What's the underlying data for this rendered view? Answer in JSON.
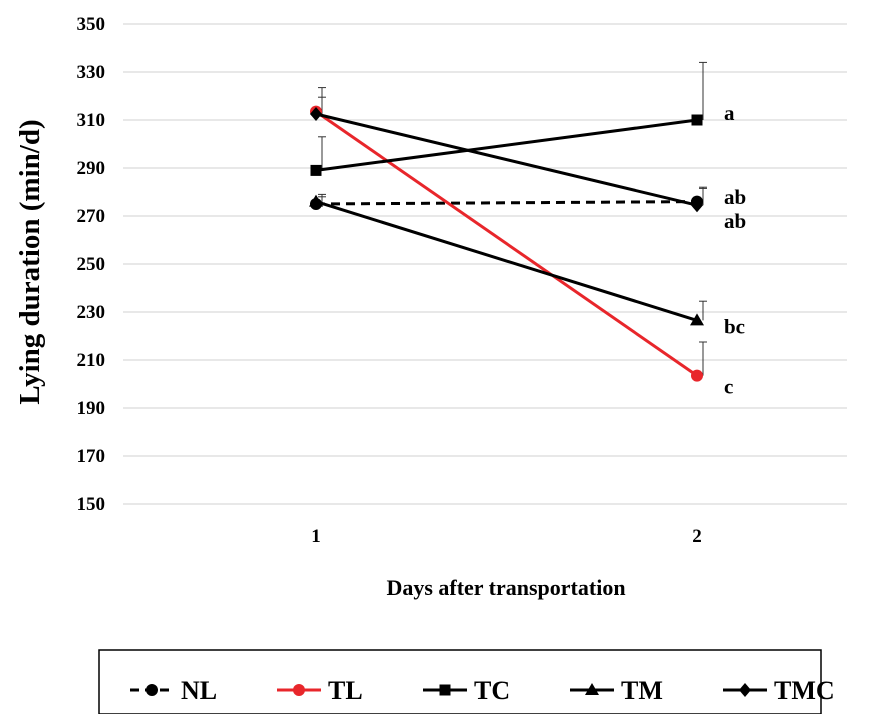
{
  "chart_data": {
    "type": "line",
    "title": "",
    "xlabel": "Days after transportation",
    "ylabel": "Lying duration (min/d)",
    "categories": [
      "1",
      "2"
    ],
    "ylim": [
      150,
      350
    ],
    "yticks": [
      "150",
      "170",
      "190",
      "210",
      "230",
      "250",
      "270",
      "290",
      "310",
      "330",
      "350"
    ],
    "grid": "horizontal",
    "legend_position": "bottom",
    "series": [
      {
        "name": "NL",
        "values": [
          275,
          276
        ],
        "errors": [
          3,
          6
        ],
        "color": "#000000",
        "dash": "dashed",
        "marker": "circle"
      },
      {
        "name": "TL",
        "values": [
          313.5,
          203.5
        ],
        "errors": [
          10,
          14
        ],
        "color": "#e8262b",
        "dash": "solid",
        "marker": "circle"
      },
      {
        "name": "TC",
        "values": [
          289,
          310
        ],
        "errors": [
          14,
          24
        ],
        "color": "#000000",
        "dash": "solid",
        "marker": "square"
      },
      {
        "name": "TM",
        "values": [
          276,
          226.5
        ],
        "errors": [
          3,
          8
        ],
        "color": "#000000",
        "dash": "solid",
        "marker": "triangle"
      },
      {
        "name": "TMC",
        "values": [
          312.5,
          274.5
        ],
        "errors": [
          7,
          7
        ],
        "color": "#000000",
        "dash": "solid",
        "marker": "diamond"
      }
    ],
    "annotations": [
      {
        "text": "a",
        "x": "2",
        "y": 313
      },
      {
        "text": "ab",
        "x": "2",
        "y": 278
      },
      {
        "text": "ab",
        "x": "2",
        "y": 268
      },
      {
        "text": "bc",
        "x": "2",
        "y": 224
      },
      {
        "text": "c",
        "x": "2",
        "y": 199
      }
    ]
  }
}
